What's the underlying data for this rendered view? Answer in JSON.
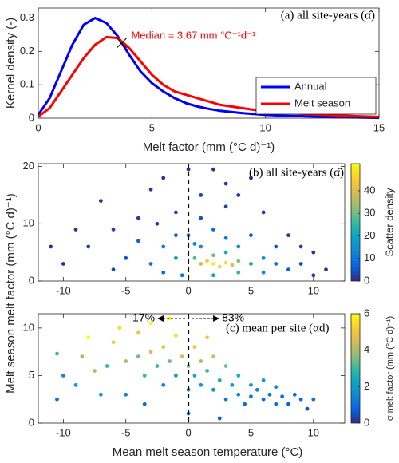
{
  "chart_data": [
    {
      "type": "line",
      "title": "(a) all site-years (α̂)",
      "xlabel": "Melt factor (mm (°C d)⁻¹)",
      "ylabel": "Kernel density (-)",
      "x": [
        0,
        0.5,
        1,
        1.5,
        2,
        2.5,
        3,
        3.5,
        4,
        4.5,
        5,
        5.5,
        6,
        6.5,
        7,
        7.5,
        8,
        9,
        10,
        11,
        12,
        13,
        14,
        15
      ],
      "series": [
        {
          "name": "Annual",
          "color": "#0000ff",
          "values": [
            0.01,
            0.06,
            0.14,
            0.22,
            0.28,
            0.3,
            0.285,
            0.245,
            0.19,
            0.14,
            0.105,
            0.08,
            0.06,
            0.045,
            0.035,
            0.028,
            0.022,
            0.015,
            0.01,
            0.007,
            0.005,
            0.003,
            0.002,
            0.001
          ]
        },
        {
          "name": "Melt season",
          "color": "#ff0000",
          "values": [
            0.005,
            0.03,
            0.08,
            0.13,
            0.18,
            0.22,
            0.243,
            0.24,
            0.21,
            0.17,
            0.13,
            0.1,
            0.08,
            0.07,
            0.06,
            0.05,
            0.04,
            0.03,
            0.02,
            0.015,
            0.012,
            0.009,
            0.006,
            0.004
          ]
        }
      ],
      "median": {
        "x": 3.67,
        "y": 0.225,
        "label": "Median = 3.67 mm °C⁻¹d⁻¹",
        "color": "#ff0000"
      },
      "xlim": [
        0,
        15
      ],
      "xticks": [
        0,
        5,
        10,
        15
      ],
      "ylim": [
        0,
        0.33
      ],
      "yticks": [
        0,
        0.1,
        0.2,
        0.3
      ],
      "legend": "lower right"
    },
    {
      "type": "scatter",
      "title": "(b) all site-years (α̂)",
      "ylabel": "Melt season melt factor (mm (°C d)⁻¹)",
      "series": [
        {
          "x": [
            2,
            3,
            1.5,
            2.5,
            3.5,
            1,
            4,
            2,
            0.5,
            3,
            5,
            1,
            4,
            -1,
            -2,
            6,
            0,
            2,
            -3,
            7,
            -4,
            5,
            8,
            -1,
            1,
            3,
            -5,
            -6,
            9,
            10,
            -8,
            -10,
            -11,
            4,
            -2,
            0,
            2,
            6,
            8,
            11,
            -7,
            -3,
            1,
            -0.5,
            2,
            4,
            6,
            -2,
            7,
            10,
            -9,
            -4,
            5,
            3,
            -1,
            0.5,
            3,
            -6,
            9,
            -2.5
          ],
          "values": [
            3,
            3.2,
            3.5,
            2.5,
            2.8,
            3,
            3.5,
            4.5,
            4,
            5,
            3,
            6,
            6,
            4,
            6,
            4,
            8,
            9,
            3,
            3,
            7,
            8,
            2,
            12,
            15,
            13,
            4,
            9,
            3,
            1,
            6,
            3,
            6,
            15,
            18,
            19.5,
            19.5,
            12,
            8,
            2,
            14,
            16,
            11,
            1,
            1,
            1.5,
            1.5,
            1.5,
            6,
            5,
            9,
            11,
            18,
            17,
            8,
            6.5,
            7.5,
            2,
            6,
            10
          ],
          "color_values": [
            50,
            48,
            45,
            46,
            40,
            38,
            32,
            30,
            28,
            22,
            22,
            15,
            14,
            16,
            10,
            14,
            9,
            8,
            10,
            9,
            6,
            6,
            6,
            4,
            3,
            3,
            5,
            3,
            4,
            2,
            2,
            1,
            1,
            2,
            1,
            1,
            1,
            2,
            2,
            1,
            1,
            1,
            5,
            10,
            20,
            25,
            15,
            8,
            5,
            1,
            1,
            2,
            1,
            1,
            7,
            13,
            10,
            3,
            2,
            3
          ]
        }
      ],
      "vline": 0,
      "xlim": [
        -12,
        12.5
      ],
      "xticks": [
        -10,
        -5,
        0,
        5,
        10
      ],
      "ylim": [
        0,
        20.5
      ],
      "yticks": [
        0,
        10,
        20
      ],
      "colorbar": {
        "label": "Scatter density",
        "lim": [
          0,
          52
        ],
        "ticks": [
          0,
          10,
          20,
          30,
          40
        ]
      }
    },
    {
      "type": "scatter",
      "title": "(c) mean per site (αd)",
      "xlabel": "Mean melt season temperature (°C)",
      "series": [
        {
          "x": [
            -10.5,
            -10,
            -10.5,
            -9,
            -8,
            -7.5,
            -7,
            -6,
            -5.5,
            -5,
            -5,
            -4,
            -4,
            -3.5,
            -3,
            -3,
            -2.5,
            -2,
            -2,
            -1.5,
            -1,
            -1,
            -0.5,
            0,
            0,
            0.5,
            0.5,
            1,
            1,
            1.5,
            2,
            2,
            2.5,
            3,
            3,
            3.5,
            4,
            4,
            4.5,
            5,
            5,
            5.5,
            6,
            6,
            6.5,
            7,
            7,
            7.5,
            8,
            8.5,
            9,
            9.5,
            10,
            -8.5,
            -6.5,
            1.5,
            -1.5,
            0,
            2.5,
            -3.5
          ],
          "values": [
            7.3,
            5,
            2.5,
            4,
            9,
            5.5,
            3,
            8.5,
            10,
            6.5,
            3,
            7,
            9.5,
            5,
            10.5,
            7.5,
            6,
            8,
            4,
            6.5,
            9.2,
            5,
            7,
            6,
            3.5,
            8,
            5,
            6.5,
            4,
            5.5,
            7,
            3.5,
            4.5,
            6,
            2.5,
            4,
            5,
            3,
            2,
            4,
            2.8,
            3.5,
            2.5,
            4.5,
            3,
            2,
            3.8,
            2.8,
            2,
            3,
            2.5,
            1.5,
            2.5,
            7,
            6,
            9,
            11,
            1,
            0.5,
            2
          ],
          "color_values": [
            3,
            1.5,
            1,
            2,
            6,
            4,
            2,
            5,
            5.5,
            4,
            1.5,
            3.5,
            5,
            3,
            6,
            4.5,
            3,
            4.8,
            1.5,
            3.5,
            5.5,
            2,
            4.5,
            3.5,
            1.5,
            5,
            2.5,
            4,
            2,
            3,
            4.5,
            1.8,
            2.5,
            3.5,
            1.2,
            2,
            2.5,
            1.5,
            1,
            2,
            1.2,
            1.5,
            1,
            2,
            1.2,
            1,
            1.5,
            1,
            0.8,
            1,
            0.8,
            0.5,
            1,
            4,
            3,
            5,
            6,
            1,
            0.8,
            1
          ]
        }
      ],
      "vline": 0,
      "annotations": [
        "17%",
        "83%"
      ],
      "xlim": [
        -12,
        12.5
      ],
      "xticks": [
        -10,
        -5,
        0,
        5,
        10
      ],
      "ylim": [
        0,
        11.5
      ],
      "yticks": [
        0,
        5,
        10
      ],
      "colorbar": {
        "label": "σ melt factor (mm (°C d)⁻¹)",
        "lim": [
          0,
          6
        ],
        "ticks": [
          0,
          2,
          4,
          6
        ]
      }
    }
  ]
}
